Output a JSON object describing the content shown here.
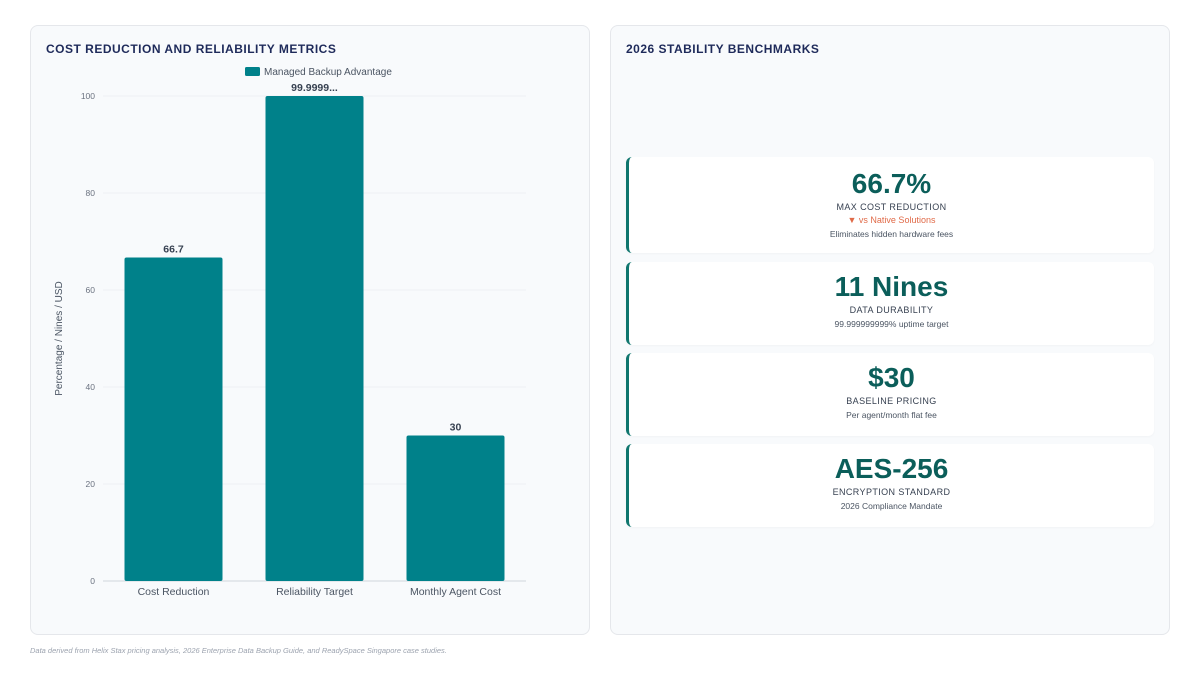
{
  "chart_panel": {
    "title": "COST REDUCTION AND RELIABILITY METRICS"
  },
  "chart_data": {
    "type": "bar",
    "categories": [
      "Cost Reduction",
      "Reliability Target",
      "Monthly Agent Cost"
    ],
    "series": [
      {
        "name": "Managed Backup Advantage",
        "values": [
          66.7,
          99.9999,
          30
        ],
        "color": "#00818a"
      }
    ],
    "data_labels": [
      "66.7",
      "99.9999...",
      "30"
    ],
    "ylabel": "Percentage / Nines / USD",
    "xlabel": "",
    "ylim": [
      0,
      100
    ],
    "yticks": [
      0,
      20,
      40,
      60,
      80,
      100
    ],
    "legend_position": "top-center",
    "grid": true
  },
  "bench_panel": {
    "title": "2026 STABILITY BENCHMARKS",
    "cards": [
      {
        "value": "66.7%",
        "label": "MAX COST REDUCTION",
        "delta": "▼ vs Native Solutions",
        "note": "Eliminates hidden hardware fees"
      },
      {
        "value": "11 Nines",
        "label": "DATA DURABILITY",
        "note": "99.999999999% uptime target"
      },
      {
        "value": "$30",
        "label": "BASELINE PRICING",
        "note": "Per agent/month flat fee"
      },
      {
        "value": "AES-256",
        "label": "ENCRYPTION STANDARD",
        "note": "2026 Compliance Mandate"
      }
    ],
    "accent_color": "#0f766e",
    "delta_color": "#e06a48"
  },
  "footer": {
    "note": "Data derived from Helix Stax pricing analysis, 2026 Enterprise Data Backup Guide, and ReadySpace Singapore case studies."
  }
}
